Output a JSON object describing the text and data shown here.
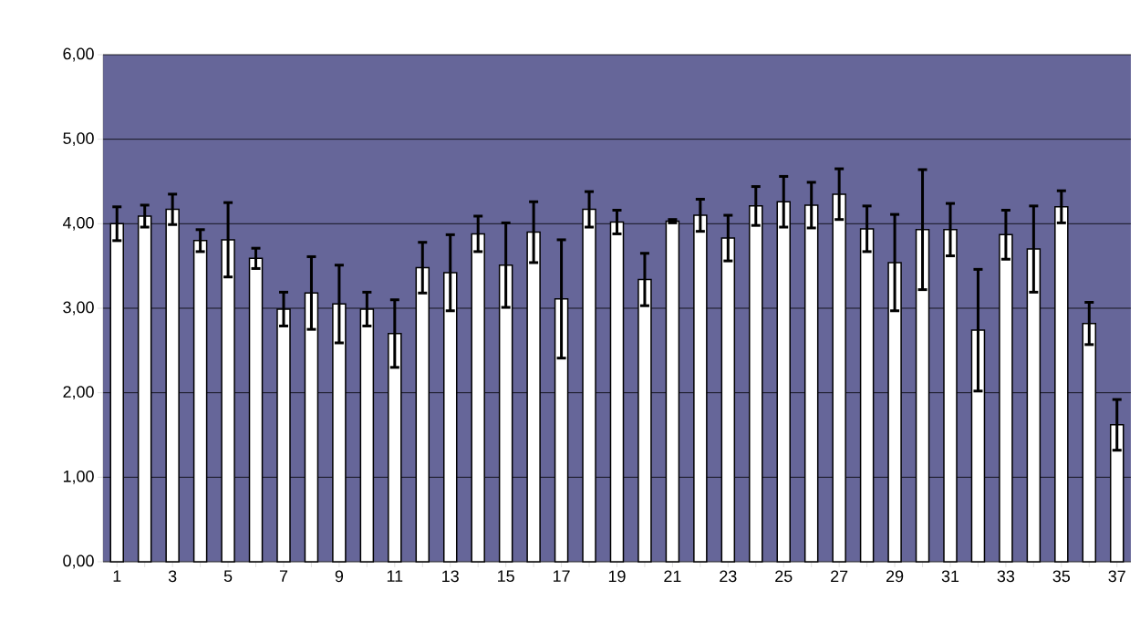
{
  "chart_data": {
    "type": "bar",
    "categories": [
      "1",
      null,
      "3",
      null,
      "5",
      null,
      "7",
      null,
      "9",
      null,
      "11",
      null,
      "13",
      null,
      "15",
      null,
      "17",
      null,
      "19",
      null,
      "21",
      null,
      "23",
      null,
      "25",
      null,
      "27",
      null,
      "29",
      null,
      "31",
      null,
      "33",
      null,
      "35",
      null,
      "37"
    ],
    "series": [
      {
        "color": "#ffffff",
        "values": [
          4.0,
          4.09,
          4.17,
          3.8,
          3.81,
          3.59,
          2.99,
          3.18,
          3.05,
          2.99,
          2.7,
          3.48,
          3.42,
          3.88,
          3.51,
          3.9,
          3.11,
          4.17,
          4.02,
          3.34,
          4.03,
          4.1,
          3.83,
          4.21,
          4.26,
          4.22,
          4.35,
          3.94,
          3.54,
          3.93,
          3.93,
          2.74,
          3.87,
          3.7,
          4.2,
          2.82,
          1.62
        ],
        "errors": [
          0.2,
          0.13,
          0.18,
          0.13,
          0.44,
          0.12,
          0.2,
          0.43,
          0.46,
          0.2,
          0.4,
          0.3,
          0.45,
          0.21,
          0.5,
          0.36,
          0.7,
          0.21,
          0.14,
          0.31,
          0.02,
          0.19,
          0.27,
          0.23,
          0.3,
          0.27,
          0.3,
          0.27,
          0.57,
          0.71,
          0.31,
          0.72,
          0.29,
          0.51,
          0.19,
          0.25,
          0.3
        ]
      }
    ],
    "ylim": [
      0,
      6
    ],
    "yticks": [
      {
        "value": 0,
        "label": "0,00"
      },
      {
        "value": 1,
        "label": "1,00"
      },
      {
        "value": 2,
        "label": "2,00"
      },
      {
        "value": 3,
        "label": "3,00"
      },
      {
        "value": 4,
        "label": "4,00"
      },
      {
        "value": 5,
        "label": "5,00"
      },
      {
        "value": 6,
        "label": "6,00"
      }
    ],
    "grid": "y"
  }
}
